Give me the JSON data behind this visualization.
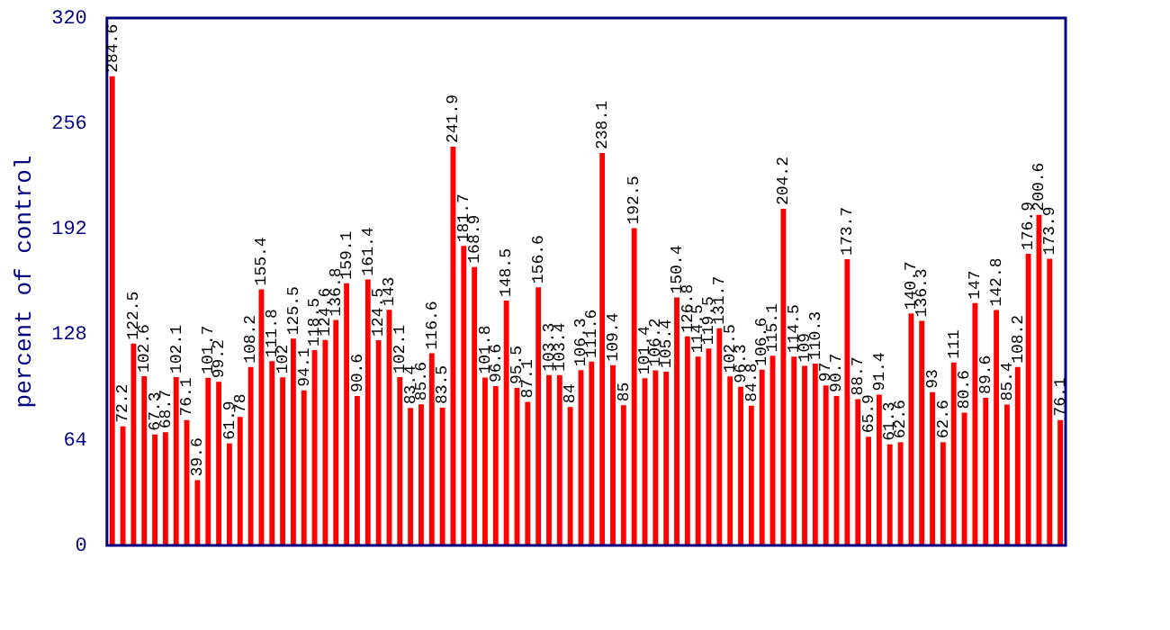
{
  "chart_data": {
    "type": "bar",
    "ylabel": "percent of control",
    "categories": [
      null,
      null,
      null,
      null,
      null,
      null,
      null,
      null,
      null,
      null,
      null,
      null,
      null,
      null,
      null,
      null,
      null,
      null,
      null,
      null,
      null,
      null,
      null,
      null,
      null,
      null,
      null,
      null,
      null,
      null,
      null,
      null,
      null,
      null,
      null,
      null,
      null,
      null,
      null,
      null,
      null,
      null,
      null,
      null,
      null,
      null,
      null,
      null,
      null,
      null,
      null,
      null,
      null,
      null,
      null,
      null,
      null,
      null,
      null,
      null,
      null,
      null,
      null,
      null,
      null,
      null,
      null,
      null,
      null,
      null,
      null,
      null,
      null,
      null,
      null,
      null,
      null,
      null,
      null,
      null,
      null,
      null,
      null,
      null,
      null,
      null,
      null,
      null,
      null,
      null
    ],
    "values": [
      284.6,
      72.2,
      122.5,
      102.6,
      67.3,
      68.7,
      102.1,
      76.1,
      39.6,
      101.7,
      99.2,
      61.9,
      78,
      108.2,
      155.4,
      111.8,
      102,
      125.5,
      94.1,
      118.5,
      124.6,
      136.8,
      159.1,
      90.6,
      161.4,
      124.5,
      143,
      102.1,
      83.4,
      85.6,
      116.6,
      83.5,
      241.9,
      181.7,
      168.9,
      101.8,
      96.6,
      148.5,
      95.5,
      87.1,
      156.6,
      103.3,
      103.4,
      84,
      106.3,
      111.6,
      238.1,
      109.4,
      85,
      192.5,
      101.4,
      106.2,
      105.4,
      150.4,
      126.8,
      114.5,
      119.5,
      131.7,
      102.5,
      96.3,
      84.8,
      106.6,
      115.1,
      204.2,
      114.5,
      109,
      110.3,
      97,
      90.7,
      173.7,
      88.7,
      65.9,
      91.4,
      61.3,
      62.6,
      140.7,
      136.3,
      93,
      62.6,
      111,
      80.6,
      147,
      89.6,
      142.8,
      85.4,
      108.2,
      176.9,
      200.6,
      173.9,
      76.1
    ],
    "color": "#ff0000",
    "ylim": [
      0,
      320
    ],
    "yticks": [
      0,
      64,
      128,
      192,
      256,
      320
    ],
    "grid": false,
    "legend": false,
    "data_labels": true
  }
}
